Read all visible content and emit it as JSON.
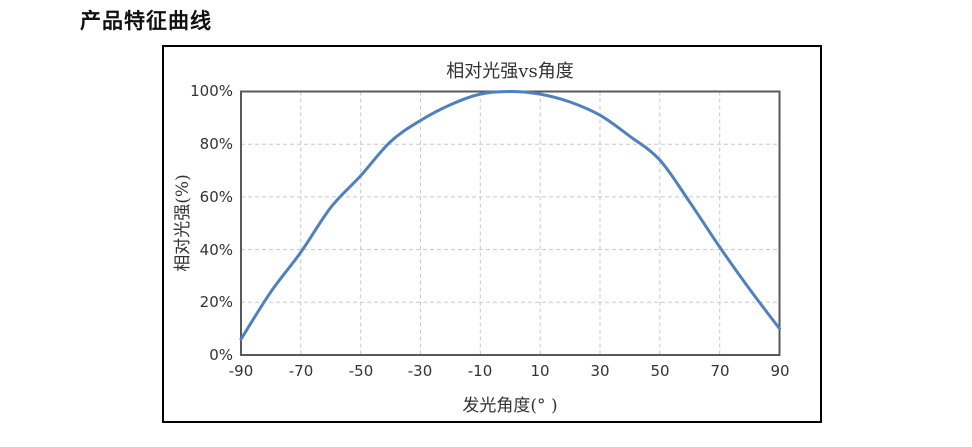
{
  "page": {
    "title": "产品特征曲线"
  },
  "chart_data": {
    "type": "line",
    "title": "相对光强vs角度",
    "xlabel": "发光角度(° )",
    "ylabel": "相对光强(%)",
    "x": [
      -90,
      -80,
      -70,
      -60,
      -50,
      -40,
      -30,
      -20,
      -10,
      0,
      10,
      20,
      30,
      40,
      50,
      60,
      70,
      80,
      90
    ],
    "y": [
      6,
      24,
      39,
      56,
      68,
      81,
      89,
      95,
      99,
      100,
      99,
      96,
      91,
      83,
      74,
      58,
      41,
      25,
      10
    ],
    "xlim": [
      -90,
      90
    ],
    "ylim": [
      0,
      100
    ],
    "x_tick_labels": [
      "-90",
      "-70",
      "-50",
      "-30",
      "-10",
      "10",
      "30",
      "50",
      "70",
      "90"
    ],
    "y_tick_labels": [
      "100%",
      "80%",
      "60%",
      "40%",
      "20%",
      "0%"
    ],
    "grid": true,
    "legend": "none",
    "line_color": "#4F81BD",
    "grid_color": "#c8c8c8",
    "plot_border_color": "#595959"
  }
}
